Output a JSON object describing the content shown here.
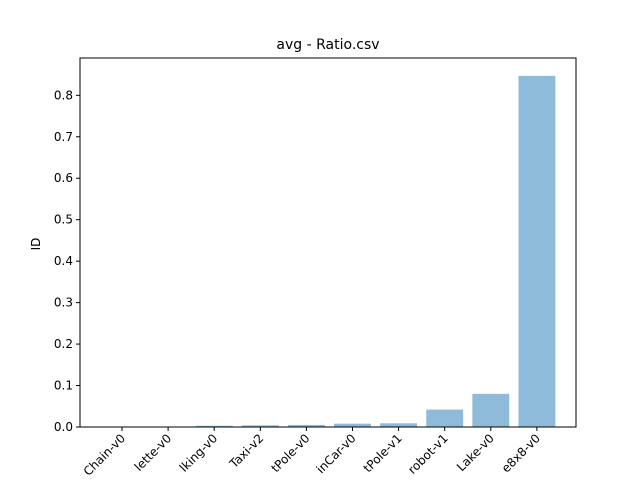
{
  "chart_data": {
    "type": "bar",
    "title": "avg - Ratio.csv",
    "xlabel": "",
    "ylabel": "ID",
    "categories": [
      "Chain-v0",
      "lette-v0",
      "lking-v0",
      "Taxi-v2",
      "tPole-v0",
      "inCar-v0",
      "tPole-v1",
      "robot-v1",
      "Lake-v0",
      "e8x8-v0"
    ],
    "values": [
      0.0005,
      0.001,
      0.003,
      0.004,
      0.005,
      0.008,
      0.009,
      0.042,
      0.08,
      0.847
    ],
    "ylim": [
      0,
      0.89
    ],
    "yticks": [
      0.0,
      0.1,
      0.2,
      0.3,
      0.4,
      0.5,
      0.6,
      0.7,
      0.8
    ],
    "ytick_labels": [
      "0.0",
      "0.1",
      "0.2",
      "0.3",
      "0.4",
      "0.5",
      "0.6",
      "0.7",
      "0.8"
    ],
    "bar_color": "#8fbbda",
    "grid": false,
    "legend": "none"
  }
}
